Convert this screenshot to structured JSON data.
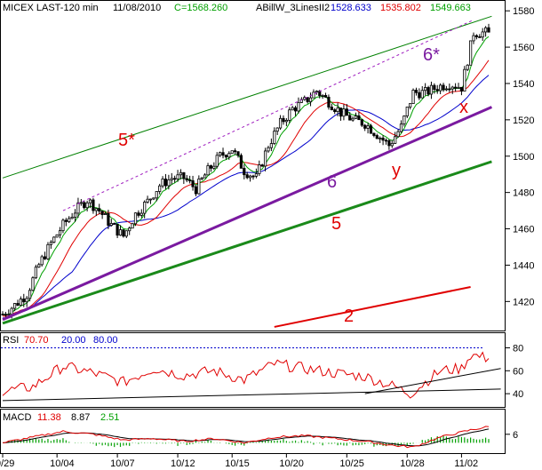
{
  "header": {
    "symbol": "MICEX LAST-120 min",
    "date": "11/08/2010",
    "close": "C=1568.260",
    "indicator": "ABillW_3LinesII2",
    "v1": "1528.633",
    "v2": "1535.802",
    "v3": "1549.663"
  },
  "rsi_header": {
    "label": "RSI",
    "v1": "70.70",
    "v2": "20.00",
    "v3": "80.00"
  },
  "macd_header": {
    "label": "MACD",
    "v1": "11.38",
    "v2": "8.87",
    "v3": "2.51"
  },
  "colors": {
    "price": "#000000",
    "green": "#00a000",
    "red": "#e00000",
    "blue": "#0000cc",
    "purple": "#7a1aa0",
    "dark_green": "#1a8a1a",
    "upper_green": "#008000",
    "channel_dash": "#a020c0",
    "rsi_line": "#e00000",
    "rsi_80": "#0000cc",
    "label_red": "#e00000",
    "label_purple": "#7a1aa0"
  },
  "annotations": [
    "5*",
    "6*",
    "6",
    "5",
    "y",
    "x",
    "2"
  ],
  "chart_data": [
    {
      "type": "candlestick",
      "name": "price",
      "y_ticks": [
        1420,
        1440,
        1460,
        1480,
        1500,
        1520,
        1540,
        1560,
        1580
      ],
      "ylim": [
        1405,
        1584
      ],
      "x_labels": [
        "9/29",
        "10/04",
        "10/07",
        "10/12",
        "10/15",
        "10/20",
        "10/25",
        "10/28",
        "11/02"
      ],
      "x_label_index": [
        0,
        18,
        38,
        58,
        76,
        94,
        114,
        134,
        152
      ],
      "last_close": 1568.26,
      "bars": 162,
      "anchors": [
        [
          0,
          1413
        ],
        [
          4,
          1418
        ],
        [
          8,
          1424
        ],
        [
          12,
          1440
        ],
        [
          16,
          1452
        ],
        [
          20,
          1462
        ],
        [
          24,
          1470
        ],
        [
          28,
          1476
        ],
        [
          32,
          1470
        ],
        [
          36,
          1462
        ],
        [
          40,
          1456
        ],
        [
          44,
          1468
        ],
        [
          48,
          1475
        ],
        [
          52,
          1484
        ],
        [
          56,
          1488
        ],
        [
          60,
          1488
        ],
        [
          64,
          1482
        ],
        [
          68,
          1492
        ],
        [
          72,
          1500
        ],
        [
          76,
          1504
        ],
        [
          80,
          1492
        ],
        [
          84,
          1488
        ],
        [
          88,
          1506
        ],
        [
          92,
          1518
        ],
        [
          96,
          1526
        ],
        [
          100,
          1530
        ],
        [
          104,
          1536
        ],
        [
          108,
          1530
        ],
        [
          112,
          1524
        ],
        [
          116,
          1520
        ],
        [
          120,
          1518
        ],
        [
          124,
          1512
        ],
        [
          128,
          1506
        ],
        [
          132,
          1516
        ],
        [
          136,
          1535
        ],
        [
          140,
          1535
        ],
        [
          144,
          1538
        ],
        [
          148,
          1540
        ],
        [
          152,
          1538
        ],
        [
          156,
          1568
        ],
        [
          161,
          1568
        ]
      ],
      "trend_lines": [
        {
          "name": "upper-channel",
          "from": [
            0,
            1488
          ],
          "to": [
            162,
            1577
          ]
        },
        {
          "name": "channel-5-star",
          "from": [
            20,
            1470
          ],
          "to": [
            156,
            1575
          ]
        },
        {
          "name": "line-6",
          "from": [
            0,
            1410
          ],
          "to": [
            162,
            1527
          ]
        },
        {
          "name": "line-5",
          "from": [
            0,
            1408
          ],
          "to": [
            162,
            1497
          ]
        },
        {
          "name": "line-2",
          "from": [
            90,
            1406
          ],
          "to": [
            155,
            1428
          ]
        }
      ]
    },
    {
      "type": "line",
      "name": "rsi",
      "y_ticks": [
        40,
        60,
        80
      ],
      "ylim": [
        30,
        92
      ],
      "levels": [
        80,
        20
      ],
      "last_value": 70.7,
      "anchors": [
        [
          0,
          42
        ],
        [
          10,
          46
        ],
        [
          20,
          64
        ],
        [
          30,
          58
        ],
        [
          40,
          50
        ],
        [
          50,
          62
        ],
        [
          60,
          56
        ],
        [
          70,
          60
        ],
        [
          80,
          52
        ],
        [
          90,
          66
        ],
        [
          100,
          62
        ],
        [
          110,
          58
        ],
        [
          120,
          55
        ],
        [
          130,
          46
        ],
        [
          135,
          40
        ],
        [
          145,
          60
        ],
        [
          152,
          62
        ],
        [
          155,
          74
        ],
        [
          161,
          70.7
        ]
      ],
      "trend_lines": [
        {
          "name": "rsi-trend",
          "from": [
            120,
            40
          ],
          "to": [
            165,
            62
          ]
        },
        {
          "name": "rsi-base",
          "from": [
            0,
            34
          ],
          "to": [
            165,
            44
          ]
        }
      ]
    },
    {
      "type": "line",
      "name": "macd",
      "y_ticks": [
        6
      ],
      "ylim": [
        -6,
        14
      ],
      "last_values": [
        11.38,
        8.87,
        2.51
      ],
      "anchors": [
        [
          0,
          0
        ],
        [
          10,
          4
        ],
        [
          20,
          8
        ],
        [
          30,
          6
        ],
        [
          40,
          2
        ],
        [
          50,
          3
        ],
        [
          60,
          1
        ],
        [
          70,
          3
        ],
        [
          80,
          0
        ],
        [
          90,
          4
        ],
        [
          100,
          5
        ],
        [
          110,
          3
        ],
        [
          120,
          1
        ],
        [
          130,
          -2
        ],
        [
          136,
          -3
        ],
        [
          145,
          4
        ],
        [
          155,
          9
        ],
        [
          161,
          11.38
        ]
      ]
    }
  ]
}
